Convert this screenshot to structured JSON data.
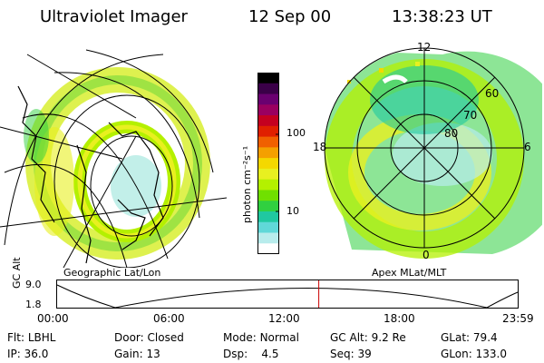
{
  "header": {
    "instrument": "Ultraviolet Imager",
    "date": "12 Sep 00",
    "time": "13:38:23 UT"
  },
  "left_panel": {
    "caption": "Geographic Lat/Lon"
  },
  "right_panel": {
    "caption": "Apex MLat/MLT",
    "mlt_labels": [
      "12",
      "18",
      "6",
      "0"
    ],
    "lat_labels": [
      "60",
      "70",
      "80"
    ]
  },
  "colorbar": {
    "unit_label": "photon cm⁻²s⁻¹",
    "ticks": [
      "100",
      "10"
    ],
    "colors": [
      "#000000",
      "#3a0048",
      "#6a0070",
      "#9a0060",
      "#c40020",
      "#e02000",
      "#f06000",
      "#f4a000",
      "#f4d800",
      "#e8f020",
      "#b4f000",
      "#70e000",
      "#30d040",
      "#20c8a0",
      "#60d8d8",
      "#b8ecec",
      "#ffffff"
    ]
  },
  "timeline": {
    "axis_label": "GC Alt",
    "y_ticks": [
      "9.0",
      "1.8"
    ],
    "x_ticks": [
      "00:00",
      "06:00",
      "12:00",
      "18:00",
      "23:59"
    ],
    "current_time_fraction": 0.5681,
    "marker_color": "#cc0000"
  },
  "status": {
    "row1": [
      {
        "key": "Flt:",
        "value": "LBHL"
      },
      {
        "key": "Door:",
        "value": "Closed"
      },
      {
        "key": "Mode:",
        "value": "Normal"
      },
      {
        "key": "GC Alt:",
        "value": "9.2 Re"
      },
      {
        "key": "GLat:",
        "value": "79.4"
      }
    ],
    "row2": [
      {
        "key": "IP:",
        "value": "36.0"
      },
      {
        "key": "Gain:",
        "value": "13"
      },
      {
        "key": "Dsp:",
        "value": "4.5"
      },
      {
        "key": "Seq:",
        "value": "39"
      },
      {
        "key": "GLon:",
        "value": "133.0"
      }
    ]
  }
}
